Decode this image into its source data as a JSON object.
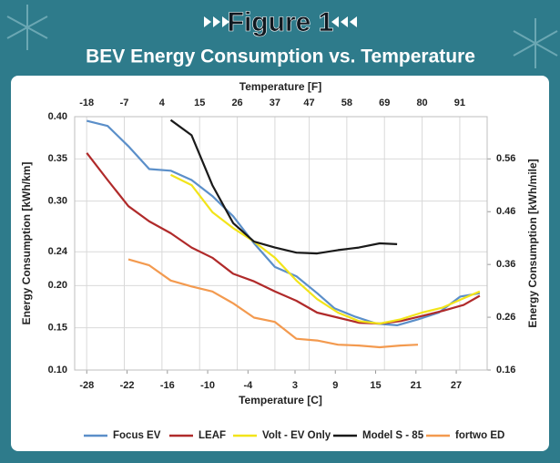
{
  "chart_data": {
    "type": "line",
    "title": "Figure 1",
    "subtitle": "BEV Energy Consumption vs. Temperature",
    "x_label": "Temperature [C]",
    "x2_label": "Temperature [F]",
    "y_label": "Energy Consumption [kWh/km]",
    "y2_label": "Energy Consumption [kWh/mile]",
    "xlim": [
      -29.8,
      31.6
    ],
    "xticks": [
      -28,
      -22,
      -16,
      -10,
      -4,
      3,
      9,
      15,
      21,
      27
    ],
    "x2lim": [
      -21.5,
      99
    ],
    "x2ticks": [
      -18,
      -7,
      4,
      15,
      26,
      37,
      47,
      58,
      69,
      80,
      91
    ],
    "ylim": [
      0.1,
      0.4
    ],
    "yticks": [
      {
        "value": 0.4,
        "label": "0.40"
      },
      0.35,
      {
        "value": 0.3,
        "label": "0.30"
      },
      0.24,
      {
        "value": 0.2,
        "label": "0.20"
      },
      0.15,
      {
        "value": 0.1,
        "label": "0.10"
      }
    ],
    "y2lim": [
      0.16,
      0.64
    ],
    "y2ticks": [
      0.56,
      0.46,
      0.36,
      0.26,
      0.16
    ],
    "grid": true,
    "series": [
      {
        "name": "Focus EV",
        "color": "#5b8fc9",
        "x": [
          -28,
          -24.9,
          -21.8,
          -18.7,
          -15.5,
          -12.4,
          -9.3,
          -6.2,
          -3.1,
          0,
          3.2,
          6.3,
          8.9,
          12,
          15.1,
          18.2,
          21.3,
          24.4,
          27.6,
          30.5
        ],
        "values": [
          0.395,
          0.389,
          0.365,
          0.338,
          0.336,
          0.325,
          0.306,
          0.282,
          0.25,
          0.222,
          0.211,
          0.191,
          0.173,
          0.163,
          0.155,
          0.153,
          0.16,
          0.168,
          0.187,
          0.191
        ]
      },
      {
        "name": "LEAF",
        "color": "#b02a2a",
        "x": [
          -28,
          -24.9,
          -21.8,
          -18.7,
          -15.5,
          -12.4,
          -9.3,
          -6.2,
          -3.1,
          0,
          3.2,
          6.3,
          9.4,
          12.5,
          15.6,
          18.7,
          21.9,
          25,
          28.1,
          30.5
        ],
        "values": [
          0.357,
          0.325,
          0.294,
          0.276,
          0.262,
          0.245,
          0.233,
          0.214,
          0.205,
          0.193,
          0.182,
          0.168,
          0.162,
          0.156,
          0.155,
          0.158,
          0.164,
          0.17,
          0.177,
          0.188
        ]
      },
      {
        "name": "Volt - EV Only",
        "color": "#f2e41a",
        "x": [
          -15.5,
          -12.4,
          -9.3,
          -6.2,
          -3.1,
          0,
          3.2,
          6.3,
          9.4,
          12.5,
          15.6,
          18.7,
          21.9,
          25,
          28.1,
          30.5
        ],
        "values": [
          0.331,
          0.319,
          0.287,
          0.268,
          0.252,
          0.233,
          0.206,
          0.184,
          0.168,
          0.158,
          0.155,
          0.16,
          0.168,
          0.174,
          0.185,
          0.193
        ]
      },
      {
        "name": "Model S - 85",
        "color": "#1a1a1a",
        "x": [
          -15.5,
          -12.4,
          -9.3,
          -6.2,
          -3.1,
          0,
          3.2,
          6.3,
          9.4,
          12.5,
          15.6,
          18.2
        ],
        "values": [
          0.396,
          0.378,
          0.319,
          0.274,
          0.252,
          0.245,
          0.239,
          0.238,
          0.242,
          0.245,
          0.25,
          0.249
        ]
      },
      {
        "name": "fortwo ED",
        "color": "#f39a4f",
        "x": [
          -21.8,
          -18.7,
          -15.5,
          -12.4,
          -9.3,
          -6.2,
          -3.1,
          0,
          3.2,
          6.3,
          9.4,
          12.5,
          15.6,
          18.7,
          21.3
        ],
        "values": [
          0.231,
          0.224,
          0.206,
          0.199,
          0.193,
          0.179,
          0.162,
          0.157,
          0.137,
          0.135,
          0.13,
          0.129,
          0.127,
          0.129,
          0.13
        ]
      }
    ]
  }
}
